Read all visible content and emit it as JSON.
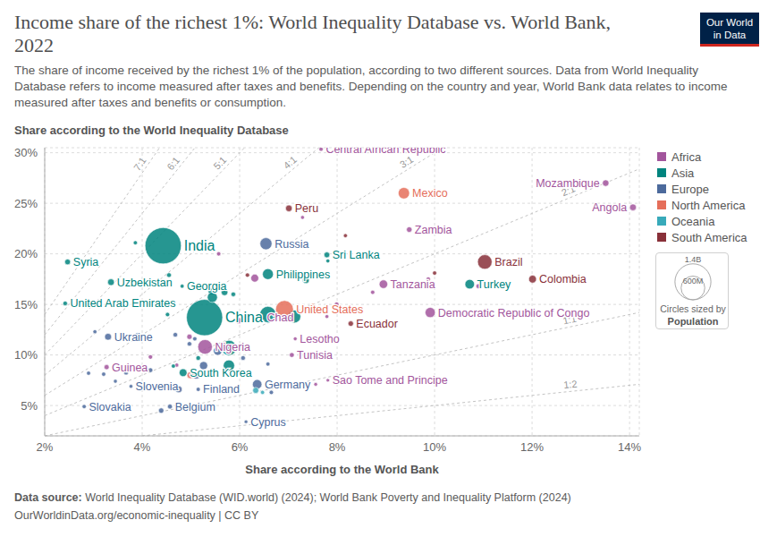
{
  "chart_data": {
    "type": "scatter",
    "title": "Income share of the richest 1%: World Inequality Database vs. World Bank, 2022",
    "subtitle": "The share of income received by the richest 1% of the population, according to two different sources. Data from World Inequality Database refers to income measured after taxes and benefits. Depending on the country and year, World Bank data relates to income measured after taxes and benefits or consumption.",
    "x_label": "Share according to the World Bank",
    "y_label": "Share according to the World Inequality Database",
    "xlim": [
      2,
      14.2
    ],
    "ylim": [
      2,
      30.5
    ],
    "xticks": [
      {
        "value": 2,
        "label": "2%"
      },
      {
        "value": 4,
        "label": "4%"
      },
      {
        "value": 6,
        "label": "6%"
      },
      {
        "value": 8,
        "label": "8%"
      },
      {
        "value": 10,
        "label": "10%"
      },
      {
        "value": 12,
        "label": "12%"
      },
      {
        "value": 14,
        "label": "14%"
      }
    ],
    "yticks": [
      {
        "value": 5,
        "label": "5%"
      },
      {
        "value": 10,
        "label": "10%"
      },
      {
        "value": 15,
        "label": "15%"
      },
      {
        "value": 20,
        "label": "20%"
      },
      {
        "value": 25,
        "label": "25%"
      },
      {
        "value": 30,
        "label": "30%"
      }
    ],
    "grid": true,
    "series": [
      {
        "name": "Africa",
        "color": "#a2559c"
      },
      {
        "name": "Asia",
        "color": "#00847e"
      },
      {
        "name": "Europe",
        "color": "#4c6a9c"
      },
      {
        "name": "North America",
        "color": "#e56e5a"
      },
      {
        "name": "Oceania",
        "color": "#38aaba"
      },
      {
        "name": "South America",
        "color": "#883039"
      }
    ],
    "reference_lines": [
      {
        "slope": 7,
        "label": "7:1"
      },
      {
        "slope": 6,
        "label": "6:1"
      },
      {
        "slope": 5,
        "label": "5:1"
      },
      {
        "slope": 4,
        "label": "4:1"
      },
      {
        "slope": 3,
        "label": "3:1"
      },
      {
        "slope": 2,
        "label": "2:1"
      },
      {
        "slope": 1,
        "label": "1:1"
      },
      {
        "slope": 0.5,
        "label": "1:2"
      }
    ],
    "points": [
      {
        "x": 7.67,
        "y": 30.35,
        "population": 5600000,
        "region": "Africa",
        "label": "Central African Republic"
      },
      {
        "x": 13.51,
        "y": 27.0,
        "population": 33000000,
        "region": "Africa",
        "label": "Mozambique"
      },
      {
        "x": 14.07,
        "y": 24.6,
        "population": 36000000,
        "region": "Africa",
        "label": "Angola"
      },
      {
        "x": 9.48,
        "y": 22.4,
        "population": 20000000,
        "region": "Africa",
        "label": "Zambia"
      },
      {
        "x": 8.95,
        "y": 17.0,
        "population": 65000000,
        "region": "Africa",
        "label": "Tanzania"
      },
      {
        "x": 9.91,
        "y": 14.2,
        "population": 99000000,
        "region": "Africa",
        "label": "Democratic Republic of Congo"
      },
      {
        "x": 6.45,
        "y": 13.7,
        "population": 18000000,
        "region": "Africa",
        "label": "Chad"
      },
      {
        "x": 5.29,
        "y": 10.8,
        "population": 218000000,
        "region": "Africa",
        "label": "Nigeria"
      },
      {
        "x": 7.14,
        "y": 11.6,
        "population": 2300000,
        "region": "Africa",
        "label": "Lesotho"
      },
      {
        "x": 7.07,
        "y": 10.0,
        "population": 12000000,
        "region": "Africa",
        "label": "Tunisia"
      },
      {
        "x": 3.27,
        "y": 8.8,
        "population": 14000000,
        "region": "Africa",
        "label": "Guinea"
      },
      {
        "x": 7.81,
        "y": 7.5,
        "population": 200000,
        "region": "Africa",
        "label": "Sao Tome and Principe"
      },
      {
        "x": 7.29,
        "y": 23.6,
        "population": 3000000,
        "region": "Africa"
      },
      {
        "x": 9.87,
        "y": 17.5,
        "population": 8000000,
        "region": "Africa"
      },
      {
        "x": 10.9,
        "y": 16.8,
        "population": 13000000,
        "region": "Africa"
      },
      {
        "x": 8.73,
        "y": 16.2,
        "population": 6000000,
        "region": "Africa"
      },
      {
        "x": 7.79,
        "y": 13.8,
        "population": 2600000,
        "region": "Africa"
      },
      {
        "x": 7.99,
        "y": 15.0,
        "population": 10000000,
        "region": "Africa"
      },
      {
        "x": 5.57,
        "y": 20.0,
        "population": 6000000,
        "region": "Africa"
      },
      {
        "x": 6.31,
        "y": 17.6,
        "population": 54000000,
        "region": "Africa"
      },
      {
        "x": 4.97,
        "y": 11.8,
        "population": 17000000,
        "region": "Africa"
      },
      {
        "x": 5.98,
        "y": 13.4,
        "population": 28000000,
        "region": "Africa"
      },
      {
        "x": 4.17,
        "y": 9.8,
        "population": 8000000,
        "region": "Africa"
      },
      {
        "x": 4.71,
        "y": 9.0,
        "population": 4000000,
        "region": "Africa"
      },
      {
        "x": 7.56,
        "y": 7.1,
        "population": 2000000,
        "region": "Africa"
      },
      {
        "x": 4.43,
        "y": 20.8,
        "population": 1417000000,
        "region": "Asia",
        "label": "India"
      },
      {
        "x": 5.28,
        "y": 13.7,
        "population": 1412000000,
        "region": "Asia",
        "label": "China"
      },
      {
        "x": 7.79,
        "y": 19.9,
        "population": 22000000,
        "region": "Asia",
        "label": "Sri Lanka"
      },
      {
        "x": 2.47,
        "y": 19.2,
        "population": 22000000,
        "region": "Asia",
        "label": "Syria"
      },
      {
        "x": 3.36,
        "y": 17.2,
        "population": 35000000,
        "region": "Asia",
        "label": "Uzbekistan"
      },
      {
        "x": 4.82,
        "y": 16.8,
        "population": 3700000,
        "region": "Asia",
        "label": "Georgia"
      },
      {
        "x": 6.58,
        "y": 18.0,
        "population": 115000000,
        "region": "Asia",
        "label": "Philippines"
      },
      {
        "x": 10.72,
        "y": 17.0,
        "population": 85000000,
        "region": "Asia",
        "label": "Turkey"
      },
      {
        "x": 2.42,
        "y": 15.1,
        "population": 9400000,
        "region": "Asia",
        "label": "United Arab Emirates"
      },
      {
        "x": 4.84,
        "y": 8.25,
        "population": 52000000,
        "region": "Asia",
        "label": "South Korea"
      },
      {
        "x": 3.86,
        "y": 21.1,
        "population": 5000000,
        "region": "Asia"
      },
      {
        "x": 4.55,
        "y": 17.9,
        "population": 10000000,
        "region": "Asia"
      },
      {
        "x": 5.42,
        "y": 16.3,
        "population": 33000000,
        "region": "Asia"
      },
      {
        "x": 5.69,
        "y": 16.2,
        "population": 34000000,
        "region": "Asia"
      },
      {
        "x": 5.87,
        "y": 16.0,
        "population": 10000000,
        "region": "Asia"
      },
      {
        "x": 5.44,
        "y": 15.7,
        "population": 98000000,
        "region": "Asia"
      },
      {
        "x": 6.58,
        "y": 14.0,
        "population": 275000000,
        "region": "Asia"
      },
      {
        "x": 7.12,
        "y": 13.8,
        "population": 171000000,
        "region": "Asia"
      },
      {
        "x": 5.78,
        "y": 10.7,
        "population": 235000000,
        "region": "Asia"
      },
      {
        "x": 5.78,
        "y": 8.95,
        "population": 125000000,
        "region": "Asia"
      },
      {
        "x": 4.52,
        "y": 14.0,
        "population": 7000000,
        "region": "Asia"
      },
      {
        "x": 4.64,
        "y": 8.9,
        "population": 5000000,
        "region": "Asia"
      },
      {
        "x": 5.15,
        "y": 9.7,
        "population": 10000000,
        "region": "Asia"
      },
      {
        "x": 7.81,
        "y": 19.3,
        "population": 3000000,
        "region": "Asia"
      },
      {
        "x": 7.36,
        "y": 17.4,
        "population": 36000000,
        "region": "Asia"
      },
      {
        "x": 6.54,
        "y": 21.0,
        "population": 144000000,
        "region": "Europe",
        "label": "Russia"
      },
      {
        "x": 3.3,
        "y": 11.8,
        "population": 38000000,
        "region": "Europe",
        "label": "Ukraine"
      },
      {
        "x": 6.36,
        "y": 7.1,
        "population": 84000000,
        "region": "Europe",
        "label": "Germany"
      },
      {
        "x": 3.77,
        "y": 6.9,
        "population": 2100000,
        "region": "Europe",
        "label": "Slovenia"
      },
      {
        "x": 5.15,
        "y": 6.6,
        "population": 5500000,
        "region": "Europe",
        "label": "Finland"
      },
      {
        "x": 4.57,
        "y": 4.9,
        "population": 11700000,
        "region": "Europe",
        "label": "Belgium"
      },
      {
        "x": 2.81,
        "y": 4.9,
        "population": 5400000,
        "region": "Europe",
        "label": "Slovakia"
      },
      {
        "x": 6.13,
        "y": 3.4,
        "population": 1200000,
        "region": "Europe",
        "label": "Cyprus"
      },
      {
        "x": 3.03,
        "y": 12.3,
        "population": 4000000,
        "region": "Europe"
      },
      {
        "x": 3.9,
        "y": 12.0,
        "population": 3000000,
        "region": "Europe"
      },
      {
        "x": 4.68,
        "y": 12.0,
        "population": 10000000,
        "region": "Europe"
      },
      {
        "x": 5.08,
        "y": 11.6,
        "population": 6000000,
        "region": "Europe"
      },
      {
        "x": 4.97,
        "y": 11.1,
        "population": 9000000,
        "region": "Europe"
      },
      {
        "x": 6.07,
        "y": 9.7,
        "population": 10000000,
        "region": "Europe"
      },
      {
        "x": 6.58,
        "y": 9.1,
        "population": 5000000,
        "region": "Europe"
      },
      {
        "x": 5.55,
        "y": 10.4,
        "population": 67000000,
        "region": "Europe"
      },
      {
        "x": 2.9,
        "y": 8.2,
        "population": 5000000,
        "region": "Europe"
      },
      {
        "x": 3.21,
        "y": 8.1,
        "population": 5900000,
        "region": "Europe"
      },
      {
        "x": 3.67,
        "y": 8.25,
        "population": 9000000,
        "region": "Europe"
      },
      {
        "x": 4.17,
        "y": 8.5,
        "population": 10000000,
        "region": "Europe"
      },
      {
        "x": 3.99,
        "y": 6.7,
        "population": 8700000,
        "region": "Europe"
      },
      {
        "x": 3.45,
        "y": 7.4,
        "population": 2800000,
        "region": "Europe"
      },
      {
        "x": 4.75,
        "y": 6.6,
        "population": 37000000,
        "region": "Europe"
      },
      {
        "x": 5.76,
        "y": 6.7,
        "population": 10000000,
        "region": "Europe"
      },
      {
        "x": 4.39,
        "y": 4.5,
        "population": 17000000,
        "region": "Europe"
      },
      {
        "x": 5.11,
        "y": 8.0,
        "population": 47000000,
        "region": "Europe"
      },
      {
        "x": 5.26,
        "y": 8.95,
        "population": 59000000,
        "region": "Europe"
      },
      {
        "x": 6.65,
        "y": 6.3,
        "population": 6800000,
        "region": "Europe"
      },
      {
        "x": 9.37,
        "y": 26.0,
        "population": 127000000,
        "region": "North America",
        "label": "Mexico"
      },
      {
        "x": 6.92,
        "y": 14.5,
        "population": 333000000,
        "region": "North America",
        "label": "United States"
      },
      {
        "x": 7.95,
        "y": 20.1,
        "population": 5000000,
        "region": "North America"
      },
      {
        "x": 7.5,
        "y": 14.9,
        "population": 4000000,
        "region": "North America"
      },
      {
        "x": 4.99,
        "y": 8.0,
        "population": 38000000,
        "region": "North America"
      },
      {
        "x": 6.33,
        "y": 6.5,
        "population": 26000000,
        "region": "Oceania"
      },
      {
        "x": 6.47,
        "y": 6.3,
        "population": 5000000,
        "region": "Oceania"
      },
      {
        "x": 7.01,
        "y": 24.5,
        "population": 34000000,
        "region": "South America",
        "label": "Peru"
      },
      {
        "x": 11.03,
        "y": 19.2,
        "population": 215000000,
        "region": "South America",
        "label": "Brazil"
      },
      {
        "x": 12.01,
        "y": 17.5,
        "population": 52000000,
        "region": "South America",
        "label": "Colombia"
      },
      {
        "x": 8.28,
        "y": 13.1,
        "population": 18000000,
        "region": "South America",
        "label": "Ecuador"
      },
      {
        "x": 8.17,
        "y": 21.8,
        "population": 3600000,
        "region": "South America"
      },
      {
        "x": 6.16,
        "y": 17.9,
        "population": 7000000,
        "region": "South America"
      },
      {
        "x": 10.0,
        "y": 18.1,
        "population": 6000000,
        "region": "South America"
      }
    ],
    "size_legend": {
      "title": [
        "Circles sized by",
        "Population"
      ],
      "sizes": [
        {
          "value": 1400000000,
          "label": "1.4B"
        },
        {
          "value": 600000000,
          "label": "600M"
        }
      ]
    },
    "source_label": "Data source:",
    "source": "World Inequality Database (WID.world) (2024); World Bank Poverty and Inequality Platform (2024)",
    "footer": "OurWorldinData.org/economic-inequality | CC BY",
    "logo": [
      "Our World",
      "in Data"
    ]
  }
}
